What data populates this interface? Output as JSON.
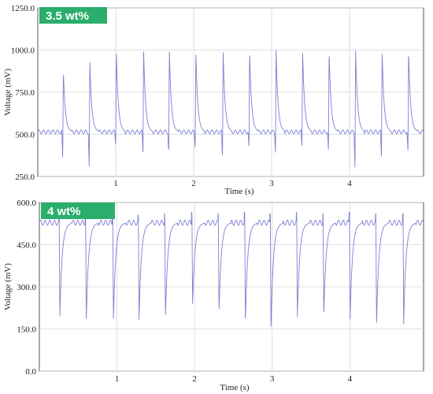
{
  "chart_data": [
    {
      "type": "line",
      "badge": "3.5 wt%",
      "xlabel": "Time (s)",
      "ylabel": "Voltage (mV)",
      "xlim": [
        0.0,
        4.95
      ],
      "ylim": [
        250.0,
        1250.0
      ],
      "x_ticks": [
        1,
        2,
        3,
        4
      ],
      "y_ticks": [
        "250.0",
        "500.0",
        "750.0",
        "1000.0",
        "1250.0"
      ],
      "y_tick_values": [
        250,
        500,
        750,
        1000,
        1250
      ],
      "grid": true,
      "baseline": 515,
      "ripple": 22,
      "ripple_period": 0.06,
      "pulse_times": [
        0.32,
        0.66,
        1.0,
        1.35,
        1.68,
        2.02,
        2.37,
        2.71,
        3.05,
        3.39,
        3.73,
        4.07,
        4.41,
        4.75
      ],
      "pulse_peaks": [
        880,
        930,
        1000,
        1000,
        1000,
        1000,
        1000,
        1000,
        1000,
        1000,
        1000,
        1000,
        1000,
        1000
      ],
      "pulse_troughs": [
        350,
        310,
        430,
        375,
        390,
        410,
        345,
        420,
        390,
        415,
        400,
        305,
        345,
        395
      ],
      "series_color": "#7b7fd4",
      "badge_color": "#2aae6b"
    },
    {
      "type": "line",
      "badge": "4 wt%",
      "xlabel": "Time (s)",
      "ylabel": "Voltage (mV)",
      "xlim": [
        0.0,
        4.95
      ],
      "ylim": [
        0.0,
        600.0
      ],
      "x_ticks": [
        1,
        2,
        3,
        4
      ],
      "y_ticks": [
        "0.0",
        "150.0",
        "300.0",
        "450.0",
        "600.0"
      ],
      "y_tick_values": [
        0,
        150,
        300,
        450,
        600
      ],
      "grid": true,
      "baseline": 528,
      "ripple": 18,
      "ripple_period": 0.06,
      "pulse_times": [
        0.26,
        0.6,
        0.95,
        1.28,
        1.62,
        1.97,
        2.31,
        2.65,
        2.98,
        3.32,
        3.66,
        4.0,
        4.34,
        4.69
      ],
      "pulse_peaks": [
        555,
        560,
        555,
        555,
        560,
        565,
        560,
        565,
        560,
        565,
        560,
        565,
        560,
        560
      ],
      "pulse_troughs": [
        195,
        175,
        185,
        180,
        185,
        235,
        205,
        175,
        145,
        185,
        190,
        185,
        160,
        165
      ],
      "series_color": "#7b7fd4",
      "badge_color": "#2aae6b"
    }
  ]
}
